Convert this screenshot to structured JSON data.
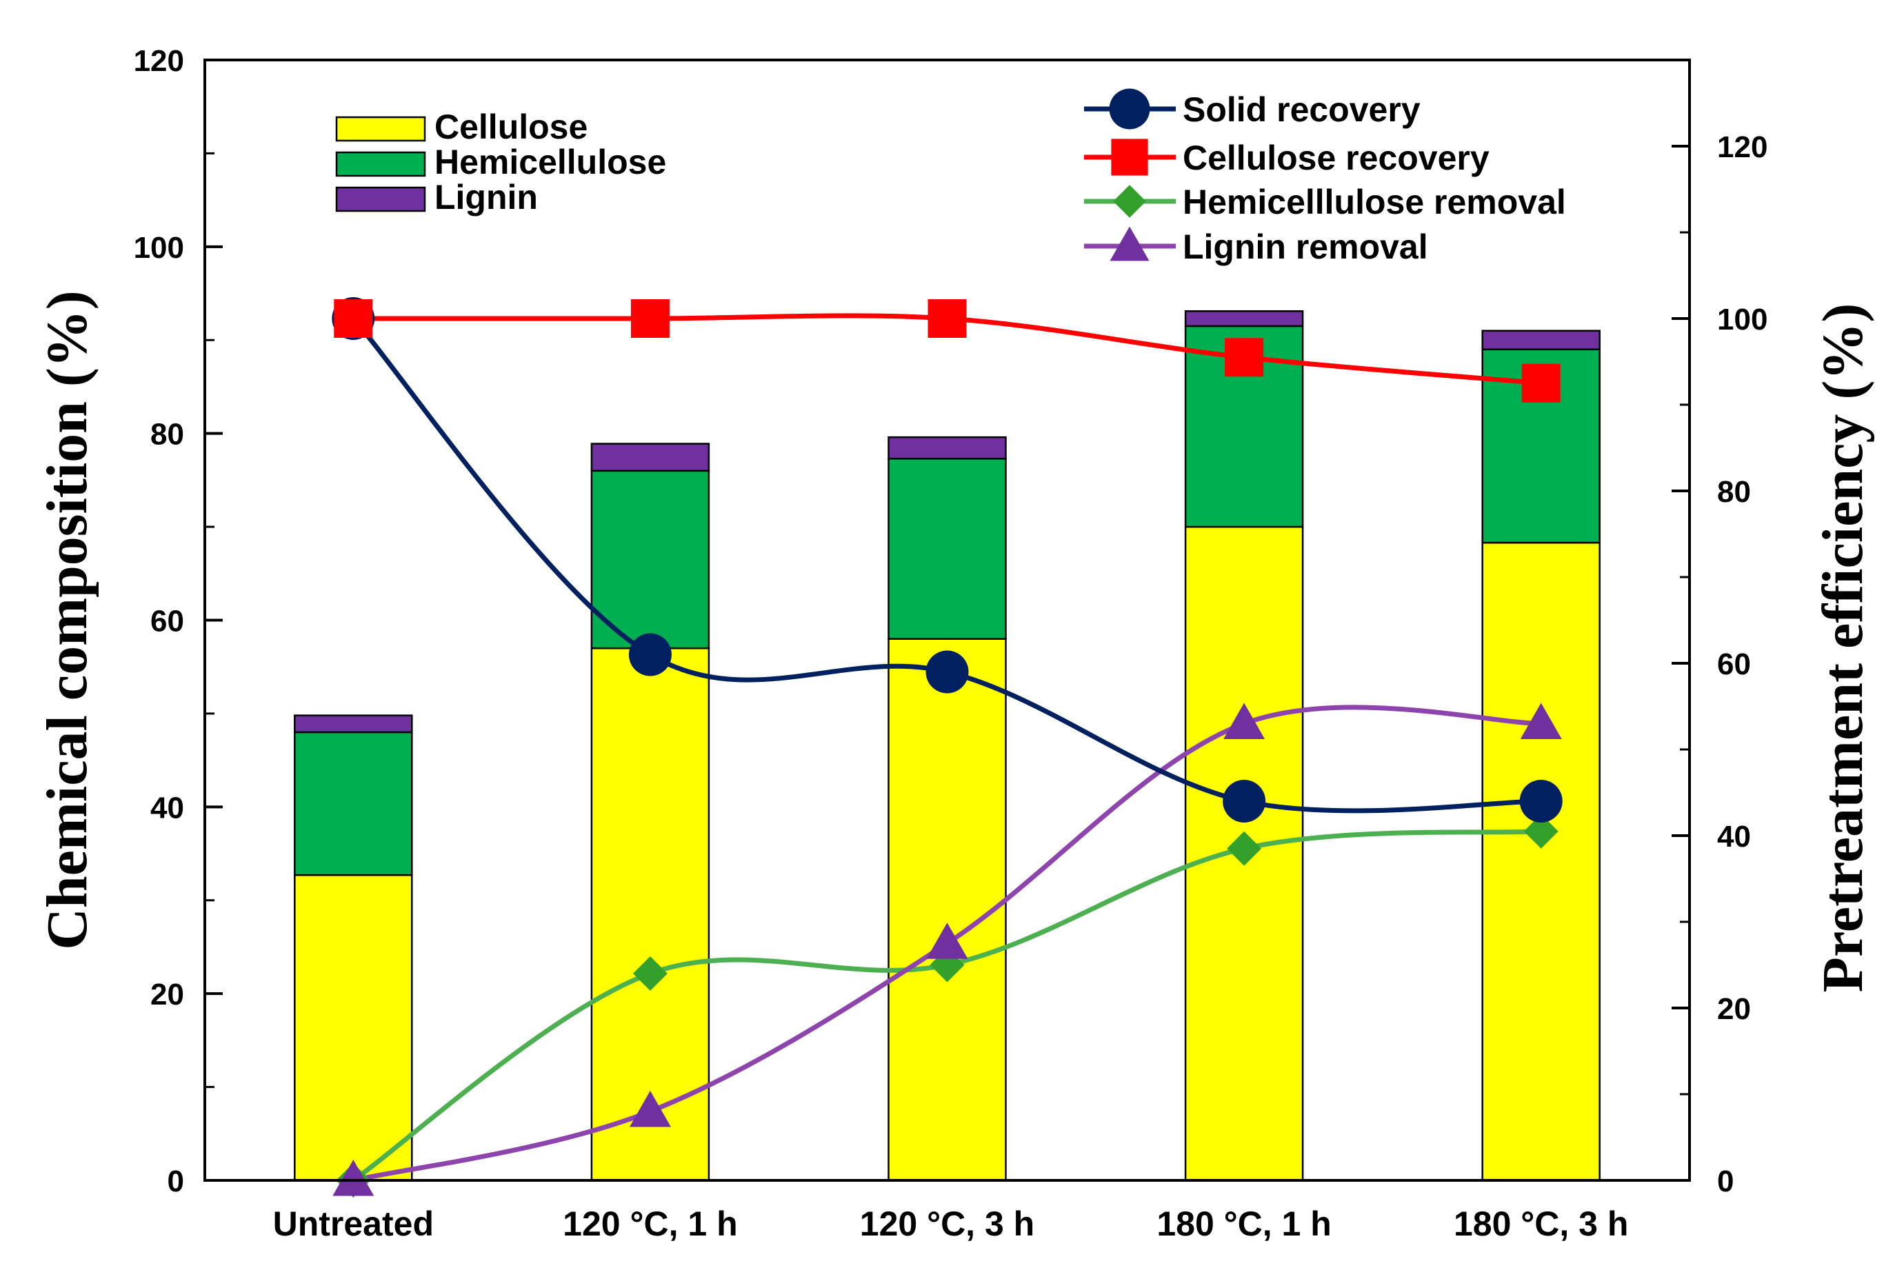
{
  "chart_data": {
    "type": "bar",
    "stacked": true,
    "categories": [
      "Untreated",
      "120 °C, 1 h",
      "120 °C, 3 h",
      "180 °C, 1 h",
      "180 °C, 3 h"
    ],
    "ylabel": "Chemical composition (%)",
    "ylim": [
      0,
      120
    ],
    "yticks": [
      0,
      20,
      40,
      60,
      80,
      100,
      120
    ],
    "y2label": "Pretreatment efficiency (%)",
    "y2lim": [
      0,
      130
    ],
    "y2ticks": [
      0,
      20,
      40,
      60,
      80,
      100,
      120
    ],
    "bar_series": [
      {
        "name": "Cellulose",
        "color": "#ffff00",
        "values": [
          32.7,
          57.0,
          58.0,
          70.0,
          68.3
        ]
      },
      {
        "name": "Hemicellulose",
        "color": "#00b050",
        "values": [
          15.3,
          19.0,
          19.3,
          21.5,
          20.7
        ]
      },
      {
        "name": "Lignin",
        "color": "#7030a0",
        "values": [
          1.8,
          2.9,
          2.3,
          1.6,
          2.0
        ]
      }
    ],
    "line_series": [
      {
        "name": "Solid recovery",
        "color": "#002060",
        "marker": "circle",
        "axis": "right",
        "values": [
          100,
          61,
          59,
          44,
          44
        ]
      },
      {
        "name": "Cellulose recovery",
        "color": "#ff0000",
        "marker": "square",
        "axis": "right",
        "values": [
          100,
          100,
          100,
          95.5,
          92.5
        ]
      },
      {
        "name": "Hemicelllulose removal",
        "color": "#33a02c",
        "line_color": "#4caf50",
        "marker": "diamond",
        "axis": "right",
        "values": [
          0,
          24,
          25,
          38.5,
          40.5
        ]
      },
      {
        "name": "Lignin removal",
        "color": "#7030a0",
        "line_color": "#8e44ad",
        "marker": "triangle",
        "axis": "right",
        "values": [
          0,
          8,
          27.5,
          53,
          53
        ]
      }
    ],
    "legend_bars_position": "top-left",
    "legend_lines_position": "top-right",
    "grid": false
  }
}
